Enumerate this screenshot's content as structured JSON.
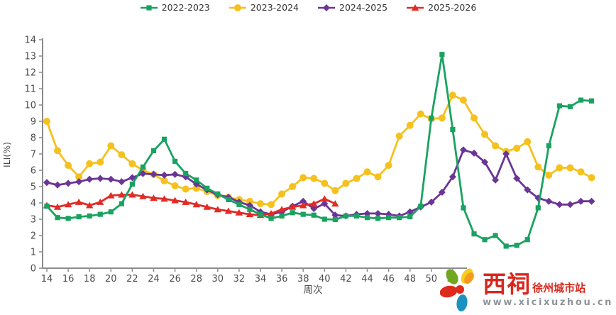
{
  "chart_data": {
    "type": "line",
    "title": "",
    "xlabel": "周次",
    "ylabel": "ILI(%)",
    "ylim": [
      0,
      14
    ],
    "y_tick_step": 1,
    "x_start_week": 14,
    "x_tick_labels": [
      14,
      16,
      18,
      20,
      22,
      24,
      26,
      28,
      30,
      32,
      34,
      36,
      38,
      40,
      42,
      44,
      46,
      48,
      50,
      52
    ],
    "legend_position": "top-center",
    "grid": false,
    "series": [
      {
        "name": "2023-2024",
        "color": "#f5c11e",
        "marker": "circle",
        "start_week": 14,
        "values": [
          9.0,
          7.2,
          6.3,
          5.6,
          6.4,
          6.5,
          7.5,
          6.95,
          6.4,
          6.0,
          5.75,
          5.35,
          5.05,
          4.85,
          4.9,
          4.7,
          4.45,
          4.35,
          4.2,
          4.1,
          3.95,
          3.9,
          4.55,
          5.0,
          5.55,
          5.5,
          5.2,
          4.75,
          5.2,
          5.5,
          5.9,
          5.6,
          6.3,
          8.1,
          8.75,
          9.45,
          9.15,
          9.2,
          10.6,
          10.3,
          9.2,
          8.2,
          7.5,
          7.15,
          7.35,
          7.75,
          6.2,
          5.7,
          6.15,
          6.15,
          5.9,
          5.55
        ]
      },
      {
        "name": "2024-2025",
        "color": "#6a3596",
        "marker": "diamond",
        "start_week": 14,
        "values": [
          5.25,
          5.1,
          5.2,
          5.3,
          5.45,
          5.5,
          5.45,
          5.3,
          5.55,
          5.8,
          5.75,
          5.7,
          5.75,
          5.6,
          5.15,
          4.8,
          4.5,
          4.35,
          4.05,
          3.85,
          3.45,
          3.3,
          3.45,
          3.8,
          4.1,
          3.65,
          3.95,
          3.25,
          3.2,
          3.3,
          3.35,
          3.35,
          3.3,
          3.2,
          3.45,
          3.75,
          4.05,
          4.65,
          5.6,
          7.25,
          7.05,
          6.5,
          5.4,
          7.0,
          5.5,
          4.8,
          4.3,
          4.1,
          3.9,
          3.9,
          4.1,
          4.1
        ]
      },
      {
        "name": "2025-2026",
        "color": "#e12b26",
        "marker": "triangle",
        "start_week": 14,
        "values": [
          3.85,
          3.75,
          3.9,
          4.05,
          3.85,
          4.05,
          4.45,
          4.5,
          4.5,
          4.4,
          4.3,
          4.25,
          4.15,
          4.05,
          3.9,
          3.75,
          3.6,
          3.5,
          3.4,
          3.3,
          3.25,
          3.35,
          3.6,
          3.75,
          3.85,
          3.95,
          4.25,
          3.95
        ]
      },
      {
        "name": "2022-2023",
        "color": "#1aa260",
        "marker": "square",
        "start_week": 14,
        "values": [
          3.8,
          3.1,
          3.05,
          3.15,
          3.2,
          3.3,
          3.45,
          3.95,
          5.15,
          6.2,
          7.2,
          7.9,
          6.55,
          5.8,
          5.4,
          4.9,
          4.55,
          4.2,
          3.9,
          3.6,
          3.3,
          3.05,
          3.2,
          3.4,
          3.3,
          3.25,
          3.0,
          2.98,
          3.2,
          3.2,
          3.1,
          3.05,
          3.1,
          3.1,
          3.15,
          3.8,
          9.2,
          13.1,
          8.5,
          3.7,
          2.1,
          1.75,
          2.0,
          1.35,
          1.4,
          1.75,
          3.7,
          7.5,
          9.95,
          9.9,
          10.3,
          10.25
        ]
      }
    ],
    "legend_order": [
      "2022-2023",
      "2023-2024",
      "2024-2025",
      "2025-2026"
    ]
  },
  "watermark": {
    "brand": "西祠",
    "site_suffix": "徐州城市站",
    "url": "www.xicixuzhou.cn",
    "petal_colors": {
      "green": "#6fa81e",
      "orange": "#f59a1d",
      "yellow": "#f6ce1b",
      "red": "#df2b1c",
      "blue": "#1b93c0"
    },
    "text_red": "#d8281e",
    "url_gray": "#8f9499"
  }
}
